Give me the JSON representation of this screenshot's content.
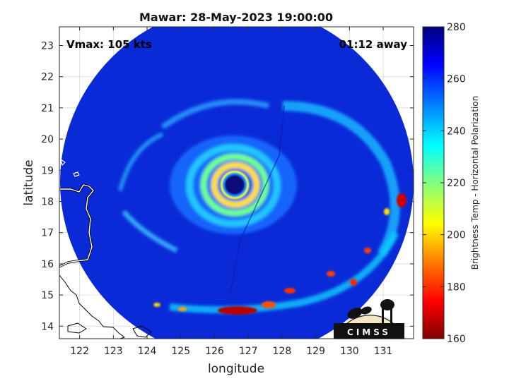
{
  "chart_data": {
    "type": "heatmap",
    "title": "Mawar: 28-May-2023 19:00:00",
    "xlabel": "longitude",
    "ylabel": "latitude",
    "xlim": [
      121.4,
      131.9
    ],
    "ylim": [
      13.6,
      23.6
    ],
    "xticks": [
      122,
      123,
      124,
      125,
      126,
      127,
      128,
      129,
      130,
      131
    ],
    "yticks": [
      14,
      15,
      16,
      17,
      18,
      19,
      20,
      21,
      22,
      23
    ],
    "grid": true,
    "annotations": {
      "vmax": "Vmax: 105 kts",
      "time_offset": "01:12 away"
    },
    "colorbar": {
      "label": "Brightness Temp - Horizontal Polarization",
      "range": [
        160,
        280
      ],
      "ticks": [
        160,
        180,
        200,
        220,
        240,
        260,
        280
      ],
      "colormap": "jet",
      "colors": [
        "#800000",
        "#ff0000",
        "#ff8000",
        "#ffff00",
        "#80ff80",
        "#00ffff",
        "#0080ff",
        "#0000ff",
        "#000080"
      ]
    },
    "storm": {
      "name": "Mawar",
      "eye_center": [
        126.1,
        18.65
      ],
      "scan_center": [
        126.8,
        18.8
      ],
      "scan_radius_deg": 5.2
    },
    "logo_text": "CIMSS"
  }
}
